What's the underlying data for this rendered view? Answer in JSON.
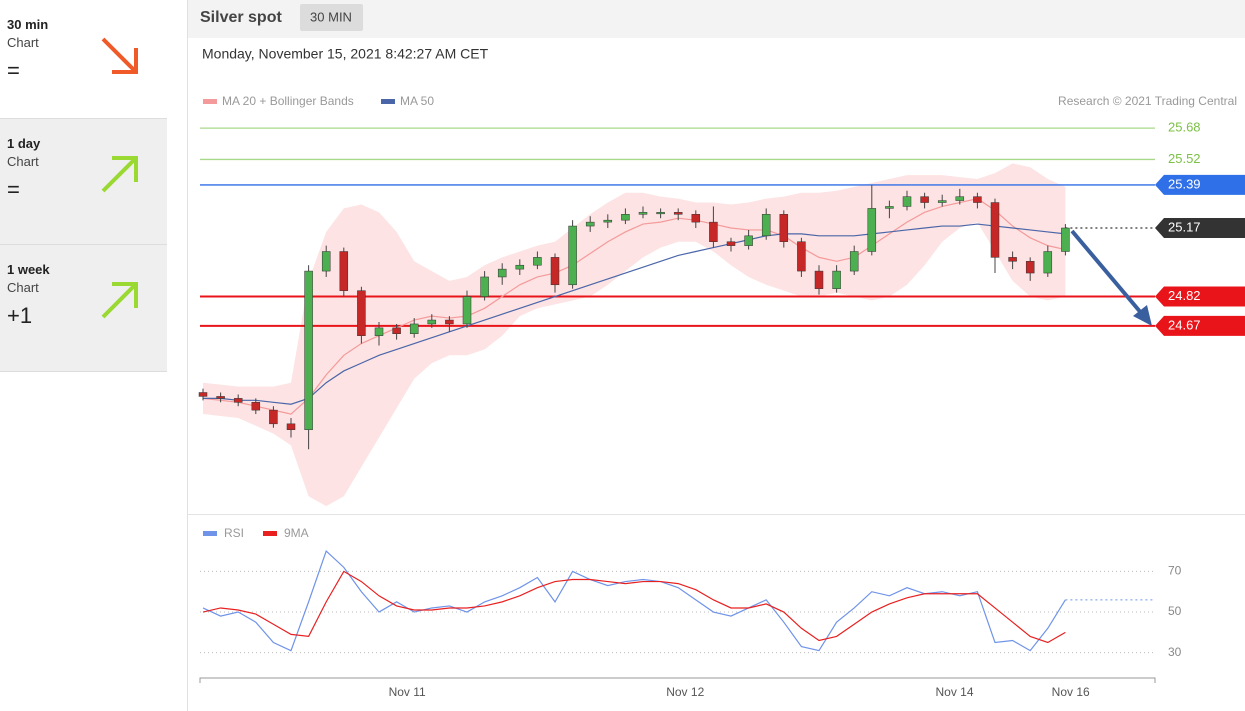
{
  "sidebar": {
    "cards": [
      {
        "title": "30 min",
        "subtitle": "Chart",
        "signal": "="
      },
      {
        "title": "1 day",
        "subtitle": "Chart",
        "signal": "="
      },
      {
        "title": "1 week",
        "subtitle": "Chart",
        "signal": "+1"
      }
    ]
  },
  "header": {
    "title": "Silver spot",
    "badge": "30 MIN",
    "date": "Monday, November 15, 2021 8:42:27 AM CET",
    "credit": "Research © 2021 Trading Central"
  },
  "chart_data": [
    {
      "type": "candlestick",
      "up_color": "#4caf50",
      "down_color": "#c62828",
      "band_color": "#fde3e3",
      "ylim": [
        23.73,
        26.13
      ],
      "candles": [
        [
          24.33,
          24.35,
          24.29,
          24.31
        ],
        [
          24.31,
          24.33,
          24.28,
          24.3
        ],
        [
          24.3,
          24.32,
          24.26,
          24.28
        ],
        [
          24.28,
          24.3,
          24.22,
          24.24
        ],
        [
          24.24,
          24.26,
          24.15,
          24.17
        ],
        [
          24.17,
          24.2,
          24.1,
          24.14
        ],
        [
          24.14,
          24.98,
          24.04,
          24.95
        ],
        [
          24.95,
          25.08,
          24.92,
          25.05
        ],
        [
          25.05,
          25.07,
          24.82,
          24.85
        ],
        [
          24.85,
          24.87,
          24.58,
          24.62
        ],
        [
          24.62,
          24.69,
          24.57,
          24.66
        ],
        [
          24.66,
          24.68,
          24.6,
          24.63
        ],
        [
          24.63,
          24.71,
          24.61,
          24.68
        ],
        [
          24.68,
          24.73,
          24.66,
          24.7
        ],
        [
          24.7,
          24.72,
          24.64,
          24.68
        ],
        [
          24.68,
          24.85,
          24.66,
          24.82
        ],
        [
          24.82,
          24.95,
          24.8,
          24.92
        ],
        [
          24.92,
          24.99,
          24.88,
          24.96
        ],
        [
          24.96,
          25.01,
          24.93,
          24.98
        ],
        [
          24.98,
          25.05,
          24.96,
          25.02
        ],
        [
          25.02,
          25.04,
          24.84,
          24.88
        ],
        [
          24.88,
          25.21,
          24.86,
          25.18
        ],
        [
          25.18,
          25.23,
          25.15,
          25.2
        ],
        [
          25.2,
          25.24,
          25.17,
          25.21
        ],
        [
          25.21,
          25.27,
          25.19,
          25.24
        ],
        [
          25.24,
          25.28,
          25.22,
          25.25
        ],
        [
          25.25,
          25.27,
          25.22,
          25.25
        ],
        [
          25.25,
          25.27,
          25.21,
          25.24
        ],
        [
          25.24,
          25.26,
          25.17,
          25.2
        ],
        [
          25.2,
          25.28,
          25.07,
          25.1
        ],
        [
          25.1,
          25.12,
          25.05,
          25.08
        ],
        [
          25.08,
          25.16,
          25.06,
          25.13
        ],
        [
          25.13,
          25.27,
          25.11,
          25.24
        ],
        [
          25.24,
          25.26,
          25.07,
          25.1
        ],
        [
          25.1,
          25.12,
          24.92,
          24.95
        ],
        [
          24.95,
          24.98,
          24.83,
          24.86
        ],
        [
          24.86,
          24.98,
          24.84,
          24.95
        ],
        [
          24.95,
          25.08,
          24.93,
          25.05
        ],
        [
          25.05,
          25.39,
          25.03,
          25.27
        ],
        [
          25.27,
          25.31,
          25.22,
          25.28
        ],
        [
          25.28,
          25.36,
          25.26,
          25.33
        ],
        [
          25.33,
          25.35,
          25.27,
          25.3
        ],
        [
          25.3,
          25.34,
          25.28,
          25.31
        ],
        [
          25.31,
          25.37,
          25.29,
          25.33
        ],
        [
          25.33,
          25.35,
          25.27,
          25.3
        ],
        [
          25.3,
          25.32,
          24.94,
          25.02
        ],
        [
          25.02,
          25.05,
          24.96,
          25.0
        ],
        [
          25.0,
          25.02,
          24.9,
          24.94
        ],
        [
          24.94,
          25.08,
          24.92,
          25.05
        ],
        [
          25.05,
          25.19,
          25.03,
          25.17
        ]
      ],
      "series": [
        {
          "name": "MA 20 + Bollinger Bands",
          "color": "#f49a9a",
          "values": [
            24.3,
            24.29,
            24.28,
            24.26,
            24.24,
            24.22,
            24.3,
            24.42,
            24.52,
            24.58,
            24.62,
            24.66,
            24.7,
            24.72,
            24.71,
            24.72,
            24.76,
            24.82,
            24.88,
            24.92,
            24.94,
            24.98,
            25.04,
            25.1,
            25.15,
            25.19,
            25.2,
            25.22,
            25.21,
            25.19,
            25.17,
            25.16,
            25.16,
            25.13,
            25.07,
            25.02,
            25.0,
            25.02,
            25.08,
            25.14,
            25.2,
            25.25,
            25.28,
            25.3,
            25.32,
            25.26,
            25.18,
            25.12,
            25.08,
            25.06
          ],
          "upper": [
            24.38,
            24.37,
            24.36,
            24.36,
            24.36,
            24.38,
            24.9,
            25.15,
            25.27,
            25.29,
            25.25,
            25.15,
            25.0,
            24.95,
            24.9,
            24.92,
            24.98,
            25.02,
            25.05,
            25.08,
            25.1,
            25.17,
            25.24,
            25.3,
            25.35,
            25.35,
            25.33,
            25.32,
            25.3,
            25.3,
            25.29,
            25.3,
            25.32,
            25.33,
            25.35,
            25.35,
            25.36,
            25.38,
            25.4,
            25.42,
            25.44,
            25.44,
            25.44,
            25.43,
            25.42,
            25.45,
            25.5,
            25.48,
            25.42,
            25.38
          ],
          "lower": [
            24.22,
            24.21,
            24.2,
            24.16,
            24.12,
            24.06,
            23.8,
            23.75,
            23.8,
            23.95,
            24.1,
            24.25,
            24.4,
            24.48,
            24.52,
            24.52,
            24.55,
            24.62,
            24.72,
            24.76,
            24.78,
            24.8,
            24.82,
            24.88,
            24.95,
            25.02,
            25.07,
            25.1,
            25.1,
            25.05,
            24.98,
            24.92,
            24.88,
            24.85,
            24.82,
            24.82,
            24.84,
            24.82,
            24.8,
            24.82,
            24.88,
            24.98,
            25.1,
            25.17,
            25.2,
            25.05,
            24.9,
            24.82,
            24.8,
            24.82
          ]
        },
        {
          "name": "MA 50",
          "color": "#4a66a8",
          "values": [
            24.3,
            24.3,
            24.29,
            24.29,
            24.28,
            24.27,
            24.3,
            24.38,
            24.44,
            24.48,
            24.52,
            24.55,
            24.58,
            24.61,
            24.64,
            24.67,
            24.7,
            24.73,
            24.76,
            24.79,
            24.82,
            24.85,
            24.88,
            24.91,
            24.94,
            24.97,
            25.0,
            25.03,
            25.05,
            25.07,
            25.09,
            25.11,
            25.13,
            25.14,
            25.14,
            25.13,
            25.13,
            25.13,
            25.14,
            25.15,
            25.16,
            25.17,
            25.18,
            25.18,
            25.19,
            25.18,
            25.17,
            25.16,
            25.15,
            25.14
          ]
        }
      ],
      "levels": [
        {
          "value": 25.68,
          "color": "#a8d88a",
          "label_style": "text",
          "style": "solid"
        },
        {
          "value": 25.52,
          "color": "#a8d88a",
          "label_style": "text",
          "style": "solid"
        },
        {
          "value": 25.39,
          "color": "#2f6fe8",
          "label_style": "tag",
          "style": "solid"
        },
        {
          "value": 25.17,
          "color": "#333333",
          "label_style": "tag",
          "style": "dotted"
        },
        {
          "value": 24.82,
          "color": "#e8141a",
          "label_style": "tag",
          "style": "solid"
        },
        {
          "value": 24.67,
          "color": "#e8141a",
          "label_style": "tag",
          "style": "solid"
        }
      ]
    },
    {
      "type": "line",
      "ylim": [
        19,
        83
      ],
      "yticks": [
        30,
        50,
        70
      ],
      "grid": true,
      "series": [
        {
          "name": "RSI",
          "color": "#6f93e8",
          "values": [
            52,
            48,
            50,
            45,
            35,
            31,
            55,
            80,
            72,
            60,
            50,
            55,
            50,
            52,
            53,
            50,
            55,
            58,
            62,
            67,
            55,
            70,
            66,
            63,
            65,
            66,
            65,
            62,
            56,
            50,
            48,
            52,
            56,
            45,
            33,
            31,
            45,
            52,
            60,
            58,
            62,
            59,
            60,
            58,
            60,
            35,
            36,
            31,
            42,
            56
          ]
        },
        {
          "name": "9MA",
          "color": "#e82020",
          "values": [
            50,
            52,
            51,
            49,
            44,
            39,
            38,
            55,
            70,
            65,
            58,
            53,
            51,
            51,
            52,
            52,
            53,
            55,
            58,
            62,
            65,
            66,
            66,
            65,
            64,
            65,
            65,
            64,
            61,
            56,
            52,
            52,
            54,
            50,
            42,
            36,
            38,
            44,
            50,
            54,
            57,
            59,
            59,
            59,
            59,
            52,
            45,
            38,
            35,
            40
          ]
        }
      ],
      "xticks": [
        {
          "value": 11.6,
          "label": "Nov 11"
        },
        {
          "value": 27.4,
          "label": "Nov 12"
        },
        {
          "value": 42.7,
          "label": "Nov 14"
        },
        {
          "value": 49.3,
          "label": "Nov 16"
        }
      ]
    }
  ]
}
